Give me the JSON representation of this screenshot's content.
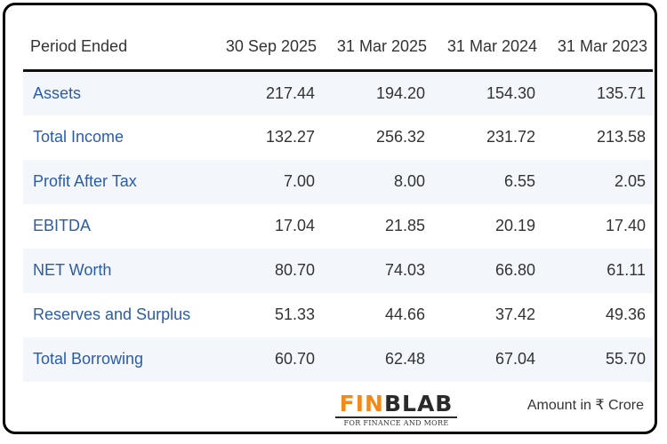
{
  "table": {
    "header": [
      "Period Ended",
      "30 Sep 2025",
      "31 Mar 2025",
      "31 Mar 2024",
      "31 Mar 2023"
    ],
    "rows": [
      {
        "label": "Assets",
        "values": [
          "217.44",
          "194.20",
          "154.30",
          "135.71"
        ]
      },
      {
        "label": "Total Income",
        "values": [
          "132.27",
          "256.32",
          "231.72",
          "213.58"
        ]
      },
      {
        "label": "Profit After Tax",
        "values": [
          "7.00",
          "8.00",
          "6.55",
          "2.05"
        ]
      },
      {
        "label": "EBITDA",
        "values": [
          "17.04",
          "21.85",
          "20.19",
          "17.40"
        ]
      },
      {
        "label": "NET Worth",
        "values": [
          "80.70",
          "74.03",
          "66.80",
          "61.11"
        ]
      },
      {
        "label": "Reserves and Surplus",
        "values": [
          "51.33",
          "44.66",
          "37.42",
          "49.36"
        ]
      },
      {
        "label": "Total Borrowing",
        "values": [
          "60.70",
          "62.48",
          "67.04",
          "55.70"
        ]
      }
    ]
  },
  "logo": {
    "part1": "FIN",
    "part2": "BLAB",
    "tagline": "FOR FINANCE AND MORE"
  },
  "footer": {
    "amount_note": "Amount in ₹ Crore"
  },
  "colors": {
    "label_text": "#2b5ca8",
    "stripe": "#f3f6fb",
    "logo_accent": "#f28a1a"
  }
}
